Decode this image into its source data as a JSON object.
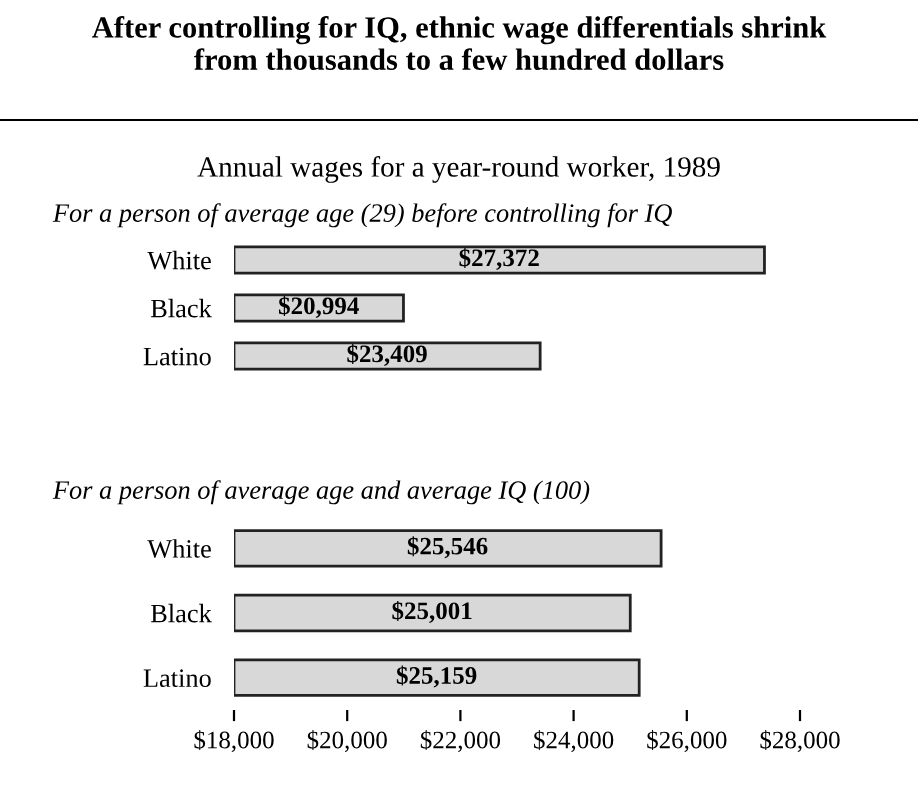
{
  "chart_data": [
    {
      "type": "bar",
      "orientation": "horizontal",
      "title": "After controlling for IQ, ethnic wage differentials shrink\nfrom thousands to a few hundred dollars",
      "subtitle": "Annual wages for a year-round worker, 1989",
      "annotations": [
        "For a person of average age (29) before controlling for IQ"
      ],
      "categories": [
        "White",
        "Black",
        "Latino"
      ],
      "values": [
        27372,
        20994,
        23409
      ],
      "value_labels": [
        "$27,372",
        "$20,994",
        "$23,409"
      ],
      "color": "#d8d8d8",
      "xlim": [
        18000,
        28000
      ],
      "tick_labels": "y",
      "grid": false,
      "legend": false
    },
    {
      "type": "bar",
      "orientation": "horizontal",
      "title": "For a person of average age and average IQ (100)",
      "categories": [
        "White",
        "Black",
        "Latino"
      ],
      "values": [
        25546,
        25001,
        25159
      ],
      "value_labels": [
        "$25,546",
        "$25,001",
        "$25,159"
      ],
      "color": "#d8d8d8",
      "xlim": [
        18000,
        28000
      ],
      "xticks": [
        {
          "value": 18000,
          "label": "$18,000"
        },
        {
          "value": 20000,
          "label": "$20,000"
        },
        {
          "value": 22000,
          "label": "$22,000"
        },
        {
          "value": 24000,
          "label": "$24,000"
        },
        {
          "value": 26000,
          "label": "$26,000"
        },
        {
          "value": 28000,
          "label": "$28,000"
        }
      ],
      "grid": false,
      "legend": false
    }
  ]
}
